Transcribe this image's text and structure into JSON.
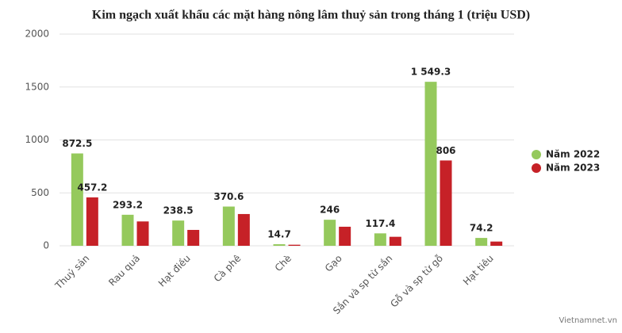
{
  "chart_data": {
    "type": "bar",
    "title": "Kim ngạch xuất khẩu các mặt hàng nông lâm thuỷ sản trong tháng 1 (triệu USD)",
    "categories": [
      "Thuỷ sản",
      "Rau quả",
      "Hạt điều",
      "Cà phê",
      "Chè",
      "Gạo",
      "Sắn và sp từ sắn",
      "Gỗ và sp từ gỗ",
      "Hạt tiêu"
    ],
    "series": [
      {
        "name": "Năm 2022",
        "color": "#95c95c",
        "values": [
          872.5,
          293.2,
          238.5,
          370.6,
          14.7,
          246,
          117.4,
          1549.3,
          74.2
        ],
        "value_labels": [
          "872.5",
          "293.2",
          "238.5",
          "370.6",
          "14.7",
          "246",
          "117.4",
          "1 549.3",
          "74.2"
        ]
      },
      {
        "name": "Năm 2023",
        "color": "#c62127",
        "values": [
          457.2,
          230,
          150,
          300,
          10,
          180,
          85,
          806,
          40
        ],
        "value_labels": [
          "457.2",
          null,
          null,
          null,
          null,
          null,
          null,
          "806",
          null
        ]
      }
    ],
    "ylim": [
      0,
      2000
    ],
    "yticks": [
      0,
      500,
      1000,
      1500,
      2000
    ],
    "grid": true,
    "legend": "right",
    "source": "Vietnamnet.vn"
  }
}
